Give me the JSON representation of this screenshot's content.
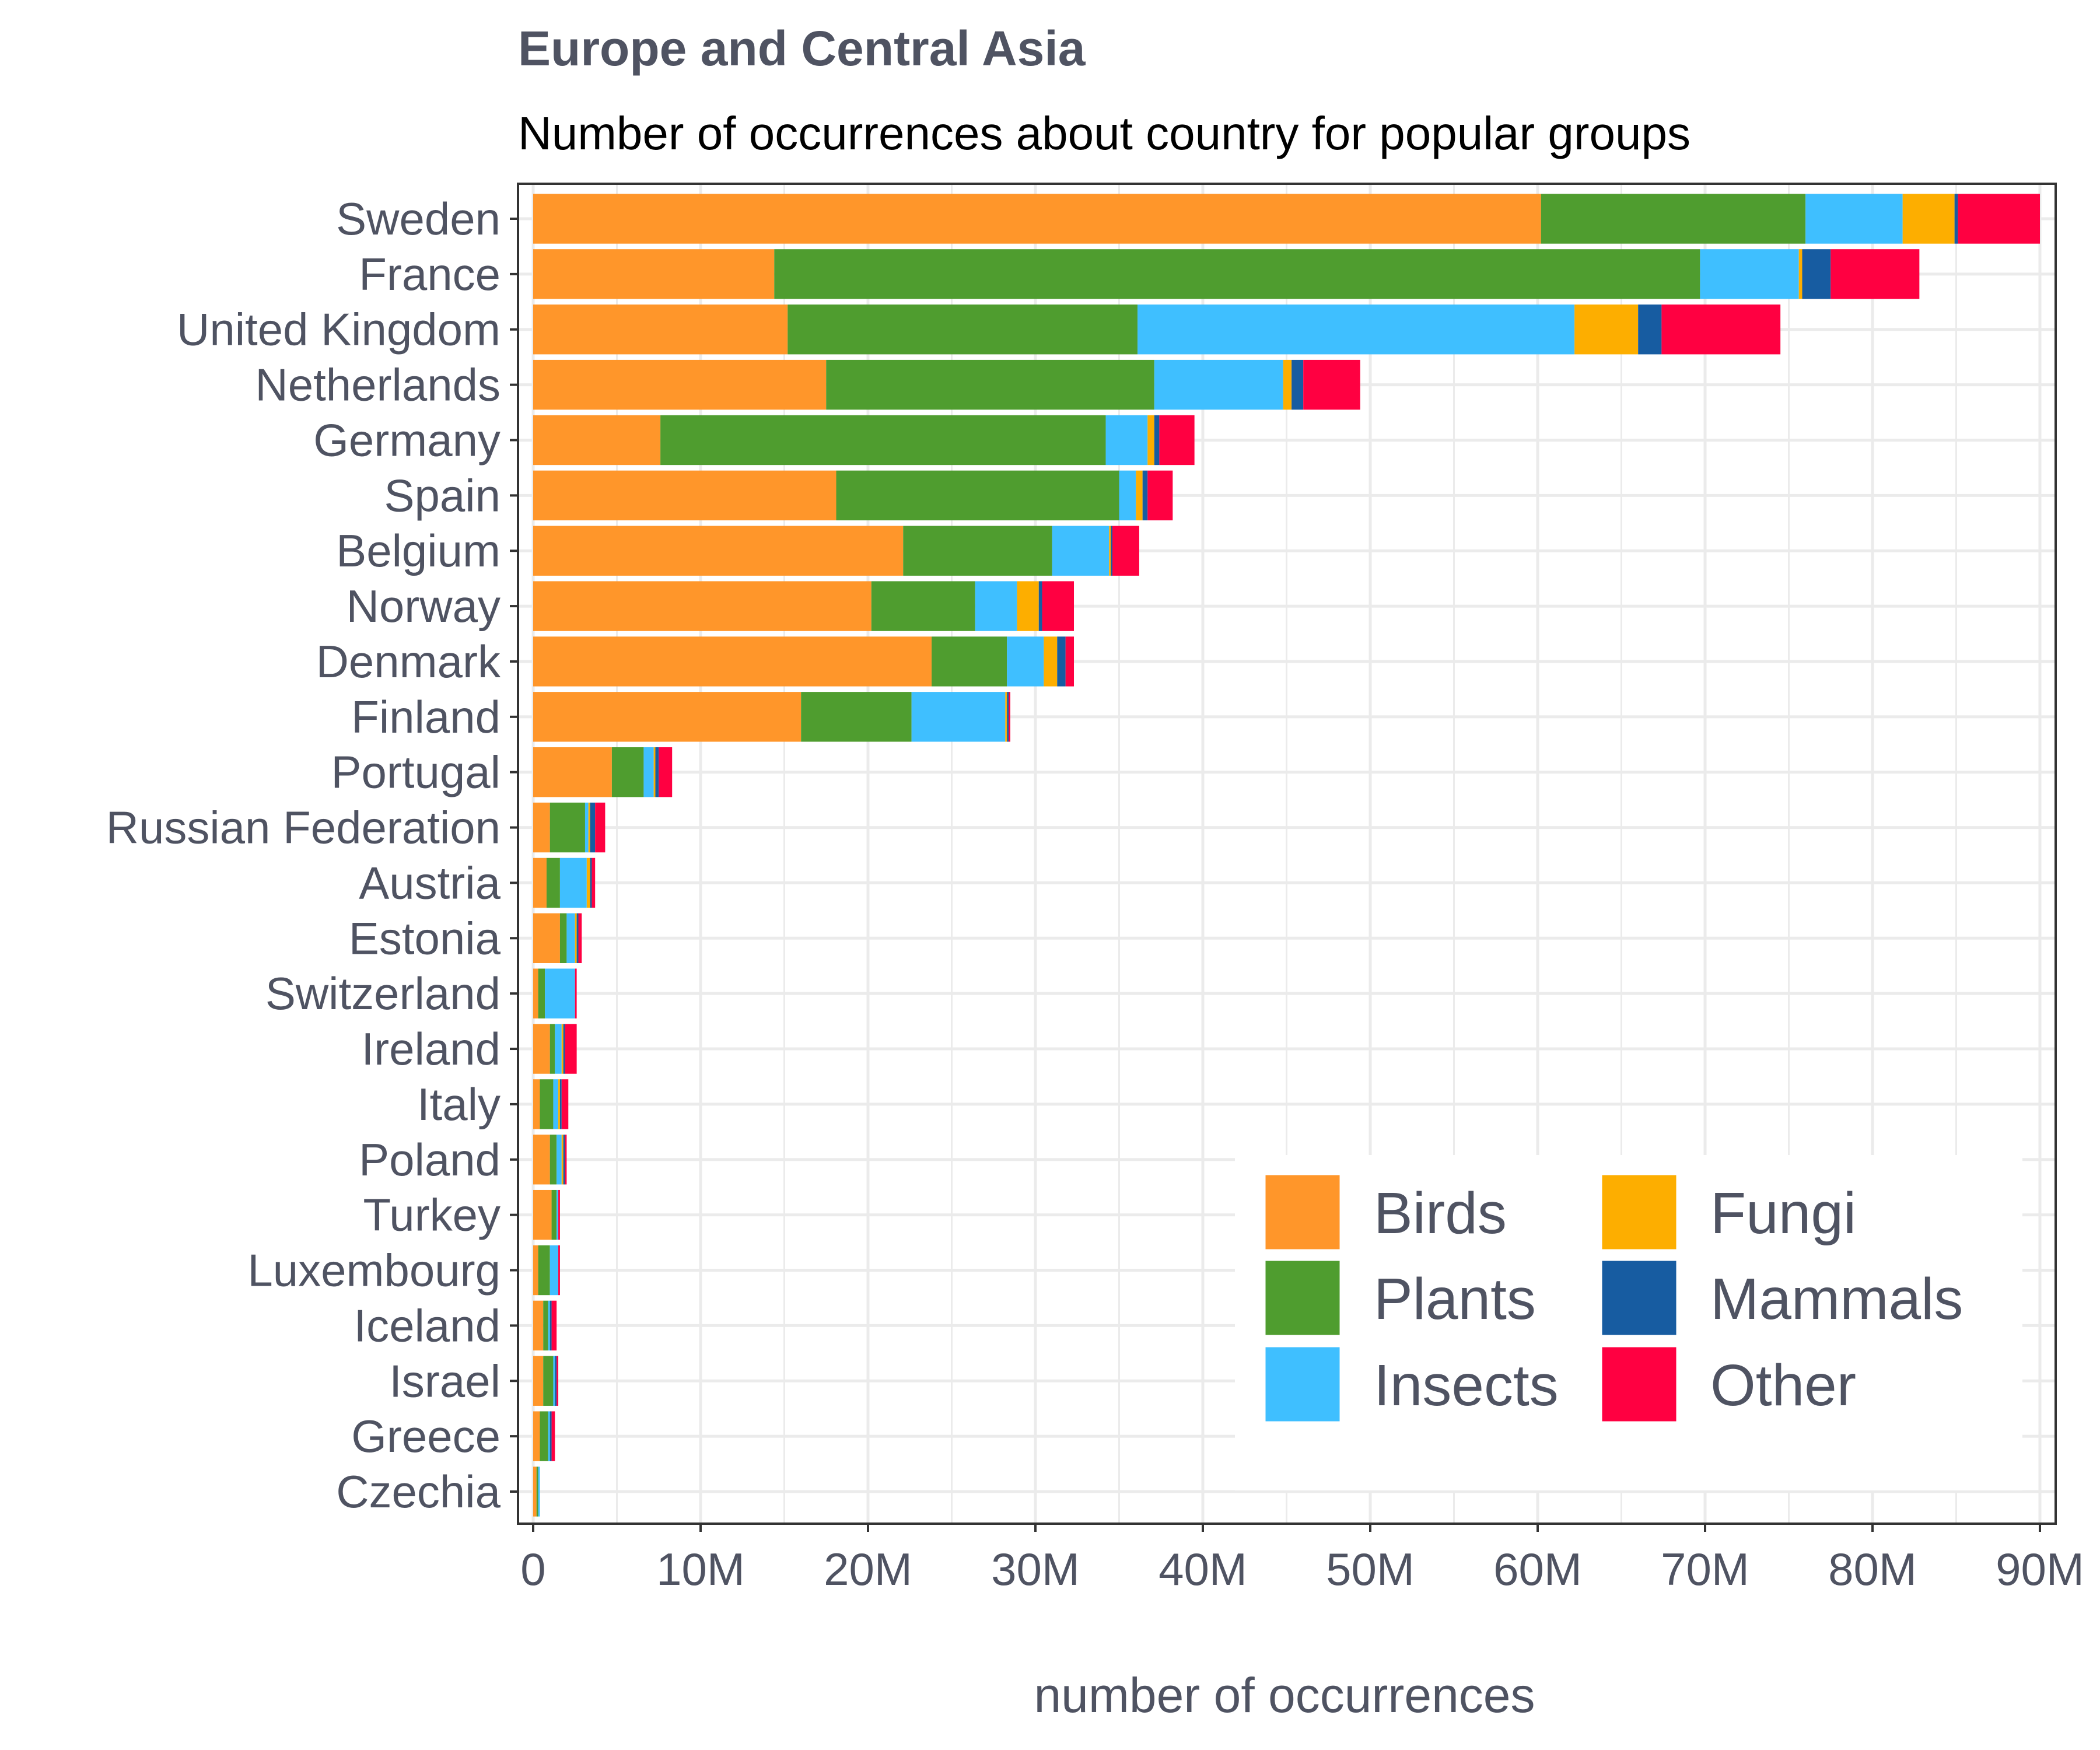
{
  "chart_data": {
    "type": "bar",
    "orientation": "horizontal",
    "stacked": true,
    "title": "Europe and Central Asia",
    "subtitle": "Number of occurrences about country for popular groups",
    "xlabel": "number of occurrences",
    "ylabel": "",
    "xlim": [
      0,
      90
    ],
    "x_unit": "M",
    "x_ticks": [
      "0",
      "10M",
      "20M",
      "30M",
      "40M",
      "50M",
      "60M",
      "70M",
      "80M",
      "90M"
    ],
    "grid": true,
    "legend_position": "bottom-right",
    "categories": [
      "Sweden",
      "France",
      "United Kingdom",
      "Netherlands",
      "Germany",
      "Spain",
      "Belgium",
      "Norway",
      "Denmark",
      "Finland",
      "Portugal",
      "Russian Federation",
      "Austria",
      "Estonia",
      "Switzerland",
      "Ireland",
      "Italy",
      "Poland",
      "Turkey",
      "Luxembourg",
      "Iceland",
      "Israel",
      "Greece",
      "Czechia"
    ],
    "series": [
      {
        "name": "Birds",
        "color": "#ff962a",
        "values": [
          60.2,
          14.4,
          15.2,
          17.5,
          7.6,
          18.1,
          22.1,
          20.2,
          23.8,
          16.0,
          4.7,
          1.0,
          0.8,
          1.6,
          0.3,
          1.0,
          0.4,
          1.0,
          1.1,
          0.3,
          0.6,
          0.6,
          0.4,
          0.2
        ]
      },
      {
        "name": "Plants",
        "color": "#4f9d2f",
        "values": [
          15.8,
          55.3,
          20.9,
          19.6,
          26.6,
          16.9,
          8.9,
          6.2,
          4.5,
          6.6,
          1.9,
          2.1,
          0.8,
          0.4,
          0.4,
          0.3,
          0.8,
          0.4,
          0.3,
          0.7,
          0.3,
          0.6,
          0.5,
          0.1
        ]
      },
      {
        "name": "Insects",
        "color": "#3fbfff",
        "values": [
          5.8,
          5.9,
          26.1,
          7.7,
          2.5,
          1.0,
          3.4,
          2.5,
          2.2,
          5.6,
          0.6,
          0.2,
          1.6,
          0.5,
          1.8,
          0.4,
          0.3,
          0.3,
          0.1,
          0.5,
          0.1,
          0.1,
          0.1,
          0.1
        ]
      },
      {
        "name": "Fungi",
        "color": "#fdae00",
        "values": [
          3.1,
          0.2,
          3.8,
          0.5,
          0.4,
          0.4,
          0.1,
          1.3,
          0.8,
          0.1,
          0.1,
          0.1,
          0.2,
          0.1,
          0.0,
          0.1,
          0.1,
          0.1,
          0.0,
          0.0,
          0.0,
          0.0,
          0.0,
          0.0
        ]
      },
      {
        "name": "Mammals",
        "color": "#175ca1",
        "values": [
          0.2,
          1.7,
          1.4,
          0.7,
          0.3,
          0.3,
          0.1,
          0.2,
          0.5,
          0.1,
          0.2,
          0.3,
          0.1,
          0.1,
          0.0,
          0.1,
          0.1,
          0.1,
          0.0,
          0.0,
          0.1,
          0.1,
          0.1,
          0.0
        ]
      },
      {
        "name": "Other",
        "color": "#ff0041",
        "values": [
          4.9,
          5.3,
          7.1,
          3.4,
          2.1,
          1.5,
          1.6,
          1.9,
          0.5,
          0.1,
          0.8,
          0.6,
          0.2,
          0.2,
          0.1,
          0.7,
          0.4,
          0.1,
          0.1,
          0.1,
          0.3,
          0.1,
          0.2,
          0.0
        ]
      }
    ]
  }
}
